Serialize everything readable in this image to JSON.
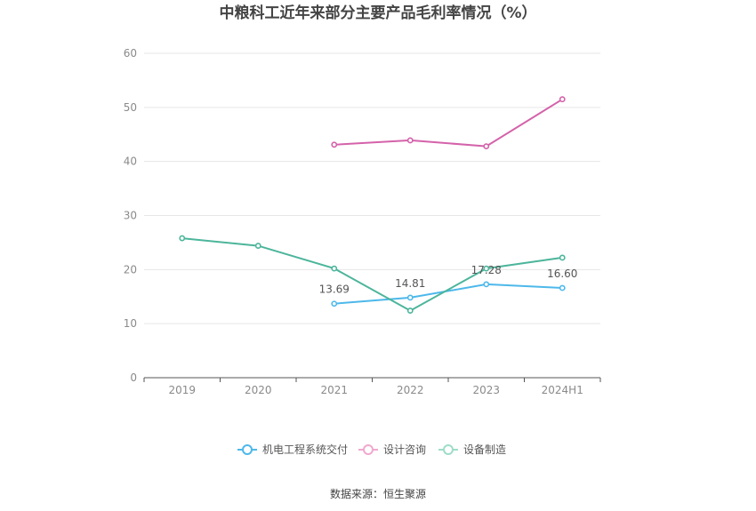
{
  "chart_data": {
    "type": "line",
    "title": "中粮科工近年来部分主要产品毛利率情况（%）",
    "categories": [
      "2019",
      "2020",
      "2021",
      "2022",
      "2023",
      "2024H1"
    ],
    "ylim": [
      0,
      60
    ],
    "yticks": [
      0,
      10,
      20,
      30,
      40,
      50,
      60
    ],
    "grid": true,
    "legend_position": "bottom",
    "series": [
      {
        "name": "机电工程系统交付",
        "color": "#4db8ea",
        "values": [
          null,
          null,
          13.69,
          14.81,
          17.28,
          16.6
        ],
        "labels": [
          null,
          null,
          "13.69",
          "14.81",
          "17.28",
          "16.60"
        ]
      },
      {
        "name": "设计咨询",
        "color": "#d462aa",
        "legend_color": "#f0a8cf",
        "values": [
          null,
          null,
          43.1,
          43.9,
          42.8,
          51.5
        ],
        "labels": [
          null,
          null,
          null,
          null,
          null,
          null
        ]
      },
      {
        "name": "设备制造",
        "color": "#4cb59b",
        "legend_color": "#9fdcc9",
        "values": [
          25.8,
          24.4,
          20.2,
          12.4,
          20.2,
          22.2
        ],
        "labels": [
          null,
          null,
          null,
          null,
          null,
          null
        ]
      }
    ]
  },
  "source": "数据来源：恒生聚源"
}
